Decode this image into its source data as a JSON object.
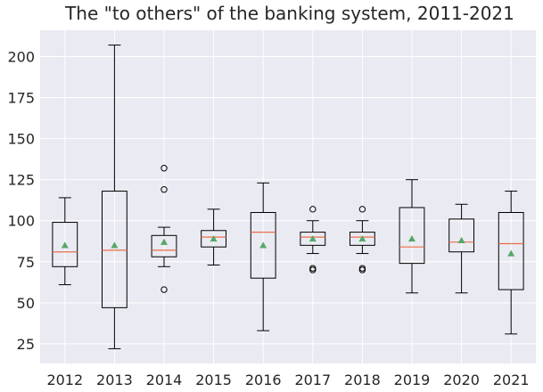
{
  "chart_data": {
    "type": "box",
    "title": "The \"to others\" of the banking system, 2011-2021",
    "xlabel": "",
    "ylabel": "",
    "categories": [
      "2012",
      "2013",
      "2014",
      "2015",
      "2016",
      "2017",
      "2018",
      "2019",
      "2020",
      "2021"
    ],
    "ylim": [
      13,
      216
    ],
    "yticks": [
      25,
      50,
      75,
      100,
      125,
      150,
      175,
      200
    ],
    "grid": true,
    "boxes": [
      {
        "label": "2012",
        "whisker_low": 61,
        "q1": 72,
        "median": 81,
        "q3": 99,
        "whisker_high": 114,
        "mean": 85,
        "outliers": []
      },
      {
        "label": "2013",
        "whisker_low": 22,
        "q1": 47,
        "median": 82,
        "q3": 118,
        "whisker_high": 207,
        "mean": 85,
        "outliers": []
      },
      {
        "label": "2014",
        "whisker_low": 72,
        "q1": 78,
        "median": 82,
        "q3": 91,
        "whisker_high": 96,
        "mean": 87,
        "outliers": [
          58,
          119,
          132
        ]
      },
      {
        "label": "2015",
        "whisker_low": 73,
        "q1": 84,
        "median": 90,
        "q3": 94,
        "whisker_high": 107,
        "mean": 89,
        "outliers": []
      },
      {
        "label": "2016",
        "whisker_low": 33,
        "q1": 65,
        "median": 93,
        "q3": 105,
        "whisker_high": 123,
        "mean": 85,
        "outliers": []
      },
      {
        "label": "2017",
        "whisker_low": 80,
        "q1": 85,
        "median": 90,
        "q3": 93,
        "whisker_high": 100,
        "mean": 89,
        "outliers": [
          70,
          71,
          107
        ]
      },
      {
        "label": "2018",
        "whisker_low": 80,
        "q1": 85,
        "median": 90,
        "q3": 93,
        "whisker_high": 100,
        "mean": 89,
        "outliers": [
          70,
          71,
          107
        ]
      },
      {
        "label": "2019",
        "whisker_low": 56,
        "q1": 74,
        "median": 84,
        "q3": 108,
        "whisker_high": 125,
        "mean": 89,
        "outliers": []
      },
      {
        "label": "2020",
        "whisker_low": 56,
        "q1": 81,
        "median": 87,
        "q3": 101,
        "whisker_high": 110,
        "mean": 88,
        "outliers": []
      },
      {
        "label": "2021",
        "whisker_low": 31,
        "q1": 58,
        "median": 86,
        "q3": 105,
        "whisker_high": 118,
        "mean": 80,
        "outliers": []
      }
    ],
    "colors": {
      "background": "#eaeaf2",
      "grid": "#ffffff",
      "box": "#000000",
      "median": "#e8704a",
      "mean": "#55a868",
      "text": "#262626"
    }
  }
}
